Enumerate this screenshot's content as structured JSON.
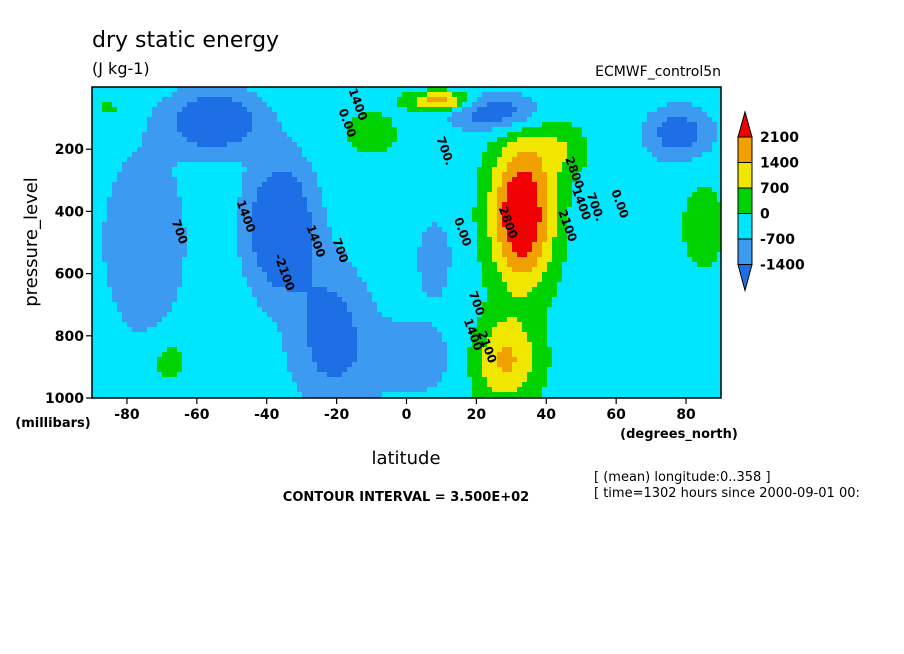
{
  "chart_data": {
    "type": "heatmap",
    "title": "dry static energy",
    "units": "(J kg-1)",
    "dataset": "ECMWF_control5n",
    "xlabel": "latitude",
    "xunits": "(degrees_north)",
    "ylabel": "pressure_level",
    "yunits": "(millibars)",
    "xlim": [
      -90,
      90
    ],
    "ylim": [
      1000,
      0
    ],
    "x_ticks": [
      {
        "value": -80,
        "label": "-80"
      },
      {
        "value": -60,
        "label": "-60"
      },
      {
        "value": -40,
        "label": "-40"
      },
      {
        "value": -20,
        "label": "-20"
      },
      {
        "value": 0,
        "label": "0"
      },
      {
        "value": 20,
        "label": "20"
      },
      {
        "value": 40,
        "label": "40"
      },
      {
        "value": 60,
        "label": "60"
      },
      {
        "value": 80,
        "label": "80"
      }
    ],
    "y_ticks": [
      {
        "value": 200,
        "label": "200"
      },
      {
        "value": 400,
        "label": "400"
      },
      {
        "value": 600,
        "label": "600"
      },
      {
        "value": 800,
        "label": "800"
      },
      {
        "value": 1000,
        "label": "1000"
      }
    ],
    "contour_interval_text": "CONTOUR INTERVAL = 3.500E+02",
    "info_lines": [
      "[ (mean) longitude:0..358 ]",
      "[ time=1302 hours since 2000-09-01 00:"
    ],
    "levels": [
      -1400,
      -700,
      0,
      700,
      1400,
      2100
    ],
    "level_labels": [
      "2100",
      "1400",
      "700",
      "0",
      "-700",
      "-1400"
    ],
    "colors": {
      "below_-1400": "#1e6ee6",
      "-1400_-700": "#3c9bf0",
      "-700_0": "#00e6ff",
      "0_700": "#00d200",
      "700_1400": "#f0e600",
      "1400_2100": "#f0a000",
      "above_2100": "#f00000"
    },
    "features": [
      {
        "lat": 33,
        "p": 420,
        "peak": 3500,
        "kind": "positive_max"
      },
      {
        "lat": -35,
        "p": 450,
        "peak": -2400,
        "kind": "negative_min"
      },
      {
        "lat": -55,
        "p": 100,
        "peak": -2300,
        "kind": "negative_min"
      },
      {
        "lat": 10,
        "p": 50,
        "peak": 2200,
        "kind": "positive_max"
      },
      {
        "lat": 75,
        "p": 150,
        "peak": -1600,
        "kind": "negative_min"
      }
    ],
    "contour_labels": [
      {
        "text": "1400",
        "lat": -47,
        "p": 420
      },
      {
        "text": "700",
        "lat": -66,
        "p": 470
      },
      {
        "text": "-2100",
        "lat": -36,
        "p": 600
      },
      {
        "text": "1400",
        "lat": -27,
        "p": 500
      },
      {
        "text": "700",
        "lat": -20,
        "p": 530
      },
      {
        "text": "0.00",
        "lat": -18,
        "p": 120
      },
      {
        "text": "1400",
        "lat": -15,
        "p": 60
      },
      {
        "text": "700.",
        "lat": 10,
        "p": 210
      },
      {
        "text": "0.00",
        "lat": 15,
        "p": 470
      },
      {
        "text": "1400",
        "lat": 18,
        "p": 800
      },
      {
        "text": "2100",
        "lat": 22,
        "p": 840
      },
      {
        "text": "700",
        "lat": 19,
        "p": 700
      },
      {
        "text": "2800",
        "lat": 28,
        "p": 440
      },
      {
        "text": "2100",
        "lat": 45,
        "p": 450
      },
      {
        "text": "1400",
        "lat": 49,
        "p": 380
      },
      {
        "text": "2800",
        "lat": 47,
        "p": 280
      },
      {
        "text": "700.",
        "lat": 53,
        "p": 390
      },
      {
        "text": "0.00",
        "lat": 60,
        "p": 380
      }
    ]
  }
}
